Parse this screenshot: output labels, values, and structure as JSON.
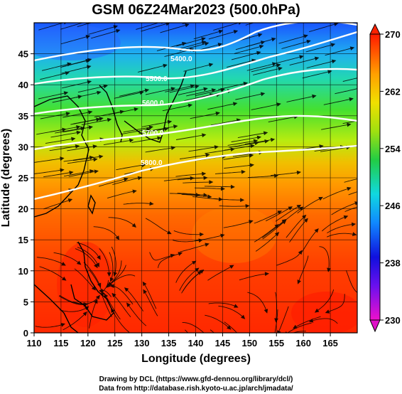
{
  "title": "GSM 06Z24Mar2023 (500.0hPa)",
  "xaxis": {
    "label": "Longitude (degrees)",
    "range": [
      110,
      170
    ],
    "ticks": [
      "110",
      "115",
      "120",
      "125",
      "130",
      "135",
      "140",
      "145",
      "150",
      "155",
      "160",
      "165"
    ]
  },
  "yaxis": {
    "label": "Latitude  (degrees)",
    "range": [
      0,
      50
    ],
    "ticks": [
      "0",
      "5",
      "10",
      "15",
      "20",
      "25",
      "30",
      "35",
      "40",
      "45"
    ]
  },
  "colorbar": {
    "range": [
      230,
      270
    ],
    "ticks": [
      "230",
      "238",
      "246",
      "254",
      "262",
      "270"
    ]
  },
  "contour_labels": [
    "5400.0",
    "5500.0",
    "5600.0",
    "5700.0",
    "5800.0"
  ],
  "credits": {
    "line1": "Drawing by DCL (https://www.gfd-dennou.org/library/dcl/)",
    "line2": "Data from http://database.rish.kyoto-u.ac.jp/arch/jmadata/"
  },
  "colors": {
    "warm": "#ff2a00",
    "orange": "#ff9900",
    "yellow": "#e6f000",
    "green": "#33dd22",
    "cyan": "#11ddcc",
    "blue": "#1166ff",
    "contour": "#ffffff"
  }
}
